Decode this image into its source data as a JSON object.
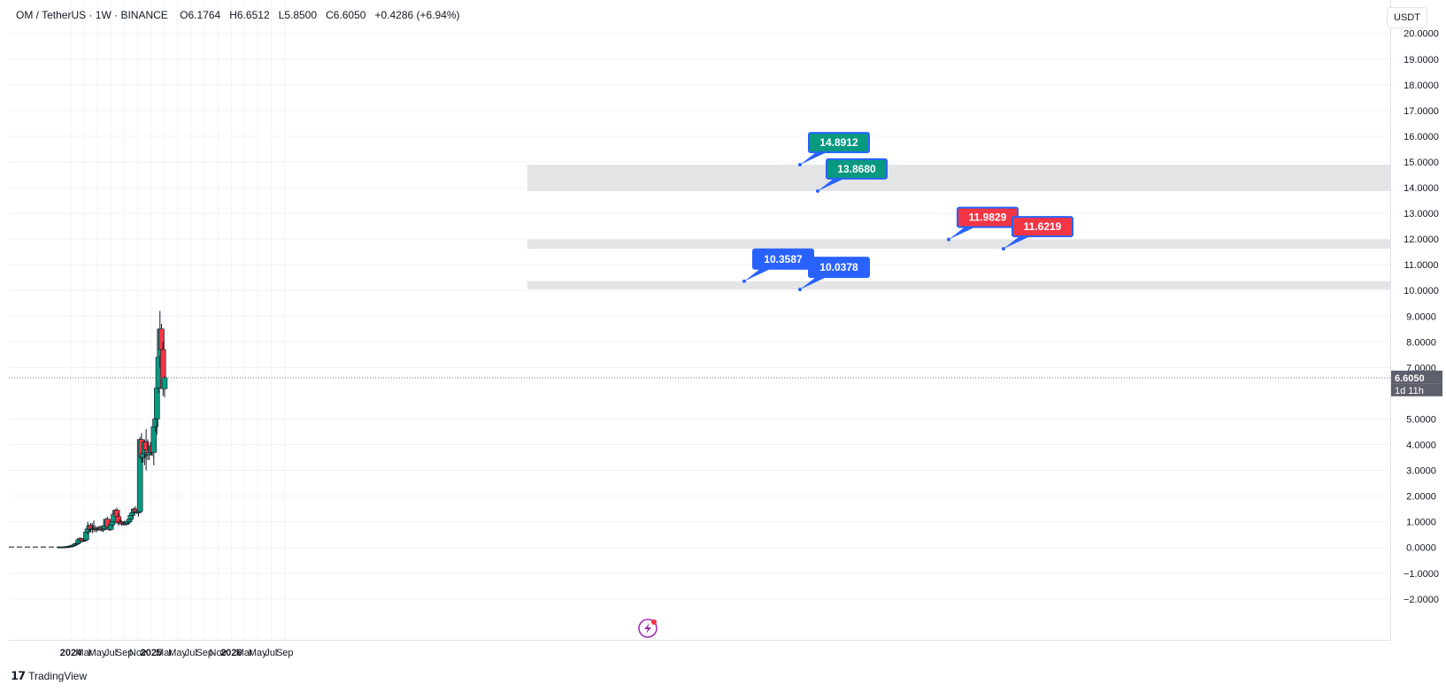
{
  "legend": {
    "symbol": "OM / TetherUS · 1W · BINANCE",
    "open": "O6.1764",
    "high": "H6.6512",
    "low": "L5.8500",
    "close": "C6.6050",
    "change": "+0.4286 (+6.94%)"
  },
  "currency_label": "USDT",
  "price_axis": {
    "ticks": [
      "20.0000",
      "19.0000",
      "18.0000",
      "17.0000",
      "16.0000",
      "15.0000",
      "14.0000",
      "13.0000",
      "12.0000",
      "11.0000",
      "10.0000",
      "9.0000",
      "8.0000",
      "7.0000",
      "5.0000",
      "4.0000",
      "3.0000",
      "2.0000",
      "1.0000",
      "0.0000",
      "−1.0000",
      "−2.0000"
    ],
    "current_price": "6.6050",
    "countdown": "1d 11h"
  },
  "time_axis": {
    "labels": [
      "2024",
      "Mar",
      "May",
      "Jul",
      "Sep",
      "Nov",
      "2025",
      "Mar",
      "May",
      "Jul",
      "Sep",
      "Nov",
      "2026",
      "Mar",
      "May",
      "Jul",
      "Sep"
    ]
  },
  "callouts": [
    {
      "text": "14.8912",
      "color": "#089981"
    },
    {
      "text": "13.8680",
      "color": "#089981"
    },
    {
      "text": "11.9829",
      "color": "#f23645"
    },
    {
      "text": "11.6219",
      "color": "#f23645"
    },
    {
      "text": "10.3587",
      "color": "#2962ff"
    },
    {
      "text": "10.0378",
      "color": "#2962ff"
    }
  ],
  "colors": {
    "up": "#089981",
    "down": "#f23645",
    "zone": "#e3e4e6",
    "grid": "#f0f3fa"
  },
  "brand": "TradingView",
  "chart_data": {
    "type": "candlestick",
    "interval": "1W",
    "x_range": [
      "2023-11-13",
      "2025-09-29"
    ],
    "ylim": [
      -2.3,
      20.6
    ],
    "zones": [
      {
        "from": 13.868,
        "to": 14.8912
      },
      {
        "from": 11.6219,
        "to": 11.9829
      },
      {
        "from": 10.0378,
        "to": 10.3587
      }
    ],
    "candles": [
      {
        "t": "2023-11-13",
        "o": 0.02,
        "h": 0.03,
        "l": 0.01,
        "c": 0.02
      },
      {
        "t": "2023-11-20",
        "o": 0.02,
        "h": 0.03,
        "l": 0.01,
        "c": 0.02
      },
      {
        "t": "2023-11-27",
        "o": 0.02,
        "h": 0.03,
        "l": 0.01,
        "c": 0.02
      },
      {
        "t": "2023-12-04",
        "o": 0.02,
        "h": 0.03,
        "l": 0.01,
        "c": 0.03
      },
      {
        "t": "2023-12-11",
        "o": 0.03,
        "h": 0.04,
        "l": 0.02,
        "c": 0.03
      },
      {
        "t": "2023-12-18",
        "o": 0.03,
        "h": 0.05,
        "l": 0.02,
        "c": 0.04
      },
      {
        "t": "2023-12-25",
        "o": 0.04,
        "h": 0.06,
        "l": 0.03,
        "c": 0.05
      },
      {
        "t": "2024-01-01",
        "o": 0.05,
        "h": 0.07,
        "l": 0.04,
        "c": 0.06
      },
      {
        "t": "2024-01-08",
        "o": 0.06,
        "h": 0.09,
        "l": 0.05,
        "c": 0.08
      },
      {
        "t": "2024-01-15",
        "o": 0.08,
        "h": 0.12,
        "l": 0.07,
        "c": 0.1
      },
      {
        "t": "2024-01-22",
        "o": 0.1,
        "h": 0.16,
        "l": 0.09,
        "c": 0.14
      },
      {
        "t": "2024-01-29",
        "o": 0.14,
        "h": 0.2,
        "l": 0.12,
        "c": 0.17
      },
      {
        "t": "2024-02-05",
        "o": 0.17,
        "h": 0.35,
        "l": 0.15,
        "c": 0.3
      },
      {
        "t": "2024-02-12",
        "o": 0.3,
        "h": 0.4,
        "l": 0.25,
        "c": 0.35
      },
      {
        "t": "2024-02-19",
        "o": 0.35,
        "h": 0.38,
        "l": 0.22,
        "c": 0.25
      },
      {
        "t": "2024-02-26",
        "o": 0.25,
        "h": 0.3,
        "l": 0.2,
        "c": 0.27
      },
      {
        "t": "2024-03-04",
        "o": 0.27,
        "h": 0.32,
        "l": 0.23,
        "c": 0.3
      },
      {
        "t": "2024-03-11",
        "o": 0.3,
        "h": 0.65,
        "l": 0.28,
        "c": 0.6
      },
      {
        "t": "2024-03-18",
        "o": 0.6,
        "h": 1.0,
        "l": 0.5,
        "c": 0.72
      },
      {
        "t": "2024-03-25",
        "o": 0.72,
        "h": 0.9,
        "l": 0.6,
        "c": 0.85
      },
      {
        "t": "2024-04-01",
        "o": 0.85,
        "h": 0.95,
        "l": 0.6,
        "c": 0.7
      },
      {
        "t": "2024-04-08",
        "o": 0.7,
        "h": 0.95,
        "l": 0.55,
        "c": 0.75
      },
      {
        "t": "2024-04-15",
        "o": 0.75,
        "h": 1.05,
        "l": 0.6,
        "c": 0.73
      },
      {
        "t": "2024-04-22",
        "o": 0.73,
        "h": 0.85,
        "l": 0.6,
        "c": 0.7
      },
      {
        "t": "2024-04-29",
        "o": 0.7,
        "h": 0.8,
        "l": 0.6,
        "c": 0.75
      },
      {
        "t": "2024-05-06",
        "o": 0.75,
        "h": 0.82,
        "l": 0.65,
        "c": 0.72
      },
      {
        "t": "2024-05-13",
        "o": 0.72,
        "h": 0.85,
        "l": 0.65,
        "c": 0.78
      },
      {
        "t": "2024-05-20",
        "o": 0.78,
        "h": 0.85,
        "l": 0.62,
        "c": 0.68
      },
      {
        "t": "2024-05-27",
        "o": 0.68,
        "h": 0.75,
        "l": 0.6,
        "c": 0.72
      },
      {
        "t": "2024-06-03",
        "o": 0.72,
        "h": 0.9,
        "l": 0.68,
        "c": 0.85
      },
      {
        "t": "2024-06-10",
        "o": 0.85,
        "h": 1.15,
        "l": 0.8,
        "c": 1.1
      },
      {
        "t": "2024-06-17",
        "o": 1.1,
        "h": 1.2,
        "l": 0.75,
        "c": 0.8
      },
      {
        "t": "2024-06-24",
        "o": 0.8,
        "h": 0.9,
        "l": 0.65,
        "c": 0.7
      },
      {
        "t": "2024-07-01",
        "o": 0.7,
        "h": 0.92,
        "l": 0.65,
        "c": 0.88
      },
      {
        "t": "2024-07-08",
        "o": 0.88,
        "h": 1.05,
        "l": 0.8,
        "c": 1.0
      },
      {
        "t": "2024-07-15",
        "o": 1.0,
        "h": 1.35,
        "l": 0.95,
        "c": 1.3
      },
      {
        "t": "2024-07-22",
        "o": 1.3,
        "h": 1.5,
        "l": 1.25,
        "c": 1.45
      },
      {
        "t": "2024-07-29",
        "o": 1.45,
        "h": 1.55,
        "l": 1.1,
        "c": 1.2
      },
      {
        "t": "2024-08-05",
        "o": 1.2,
        "h": 1.35,
        "l": 0.85,
        "c": 0.95
      },
      {
        "t": "2024-08-12",
        "o": 0.95,
        "h": 1.1,
        "l": 0.9,
        "c": 1.0
      },
      {
        "t": "2024-08-19",
        "o": 1.0,
        "h": 1.05,
        "l": 0.85,
        "c": 0.92
      },
      {
        "t": "2024-08-26",
        "o": 0.92,
        "h": 1.0,
        "l": 0.85,
        "c": 0.95
      },
      {
        "t": "2024-09-02",
        "o": 0.95,
        "h": 1.05,
        "l": 0.85,
        "c": 0.9
      },
      {
        "t": "2024-09-09",
        "o": 0.9,
        "h": 1.0,
        "l": 0.85,
        "c": 0.95
      },
      {
        "t": "2024-09-16",
        "o": 0.95,
        "h": 1.05,
        "l": 0.88,
        "c": 1.0
      },
      {
        "t": "2024-09-23",
        "o": 1.0,
        "h": 1.15,
        "l": 0.92,
        "c": 1.1
      },
      {
        "t": "2024-09-30",
        "o": 1.1,
        "h": 1.3,
        "l": 1.05,
        "c": 1.25
      },
      {
        "t": "2024-10-07",
        "o": 1.25,
        "h": 1.4,
        "l": 1.2,
        "c": 1.35
      },
      {
        "t": "2024-10-14",
        "o": 1.35,
        "h": 1.55,
        "l": 1.3,
        "c": 1.5
      },
      {
        "t": "2024-10-21",
        "o": 1.5,
        "h": 1.6,
        "l": 1.35,
        "c": 1.4
      },
      {
        "t": "2024-10-28",
        "o": 1.4,
        "h": 1.45,
        "l": 1.3,
        "c": 1.35
      },
      {
        "t": "2024-11-04",
        "o": 1.35,
        "h": 1.45,
        "l": 1.2,
        "c": 1.4
      },
      {
        "t": "2024-11-11",
        "o": 1.4,
        "h": 4.3,
        "l": 1.35,
        "c": 4.2
      },
      {
        "t": "2024-11-18",
        "o": 4.2,
        "h": 4.45,
        "l": 3.3,
        "c": 3.5
      },
      {
        "t": "2024-11-25",
        "o": 3.5,
        "h": 3.75,
        "l": 3.3,
        "c": 3.65
      },
      {
        "t": "2024-12-02",
        "o": 3.65,
        "h": 4.2,
        "l": 3.2,
        "c": 4.1
      },
      {
        "t": "2024-12-09",
        "o": 4.1,
        "h": 4.6,
        "l": 3.0,
        "c": 3.8
      },
      {
        "t": "2024-12-16",
        "o": 3.8,
        "h": 4.2,
        "l": 3.4,
        "c": 3.6
      },
      {
        "t": "2024-12-23",
        "o": 3.6,
        "h": 3.9,
        "l": 3.4,
        "c": 3.7
      },
      {
        "t": "2024-12-30",
        "o": 3.7,
        "h": 4.1,
        "l": 3.6,
        "c": 3.95
      },
      {
        "t": "2025-01-06",
        "o": 3.95,
        "h": 4.1,
        "l": 3.55,
        "c": 3.7
      },
      {
        "t": "2025-01-13",
        "o": 3.7,
        "h": 4.8,
        "l": 3.2,
        "c": 4.7
      },
      {
        "t": "2025-01-20",
        "o": 4.7,
        "h": 5.2,
        "l": 4.5,
        "c": 5.0
      },
      {
        "t": "2025-01-27",
        "o": 5.0,
        "h": 6.4,
        "l": 4.4,
        "c": 6.2
      },
      {
        "t": "2025-02-03",
        "o": 6.2,
        "h": 7.5,
        "l": 6.0,
        "c": 7.4
      },
      {
        "t": "2025-02-10",
        "o": 7.4,
        "h": 9.2,
        "l": 7.0,
        "c": 8.5
      },
      {
        "t": "2025-02-17",
        "o": 8.5,
        "h": 8.7,
        "l": 7.5,
        "c": 7.7
      },
      {
        "t": "2025-02-24",
        "o": 7.7,
        "h": 8.0,
        "l": 5.9,
        "c": 6.18
      },
      {
        "t": "2025-03-03",
        "o": 6.1764,
        "h": 6.6512,
        "l": 5.85,
        "c": 6.605
      }
    ]
  }
}
